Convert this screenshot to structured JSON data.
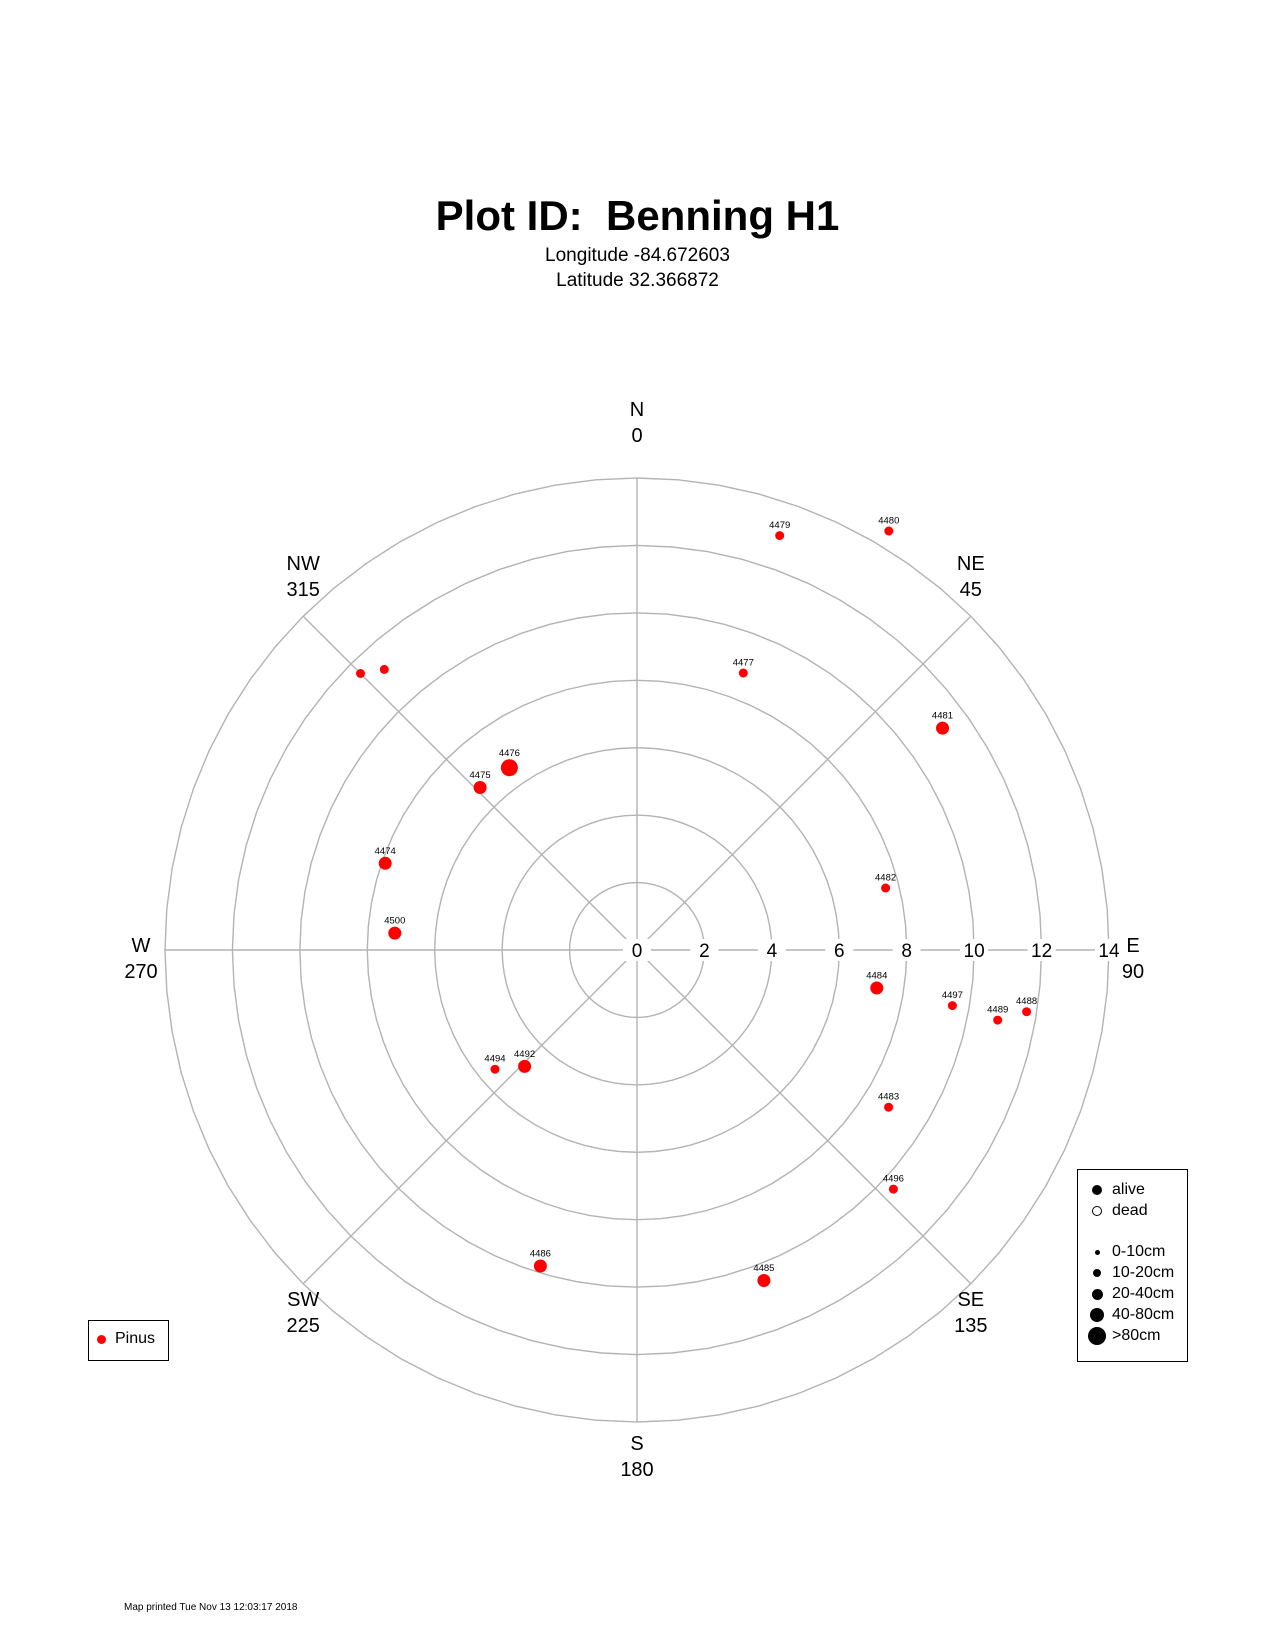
{
  "title": "Plot ID:  Benning H1",
  "subtitle": {
    "longitude": "Longitude -84.672603",
    "latitude": "Latitude 32.366872"
  },
  "footer": "Map printed Tue Nov 13 12:03:17 2018",
  "colors": {
    "grid": "#b3b3b3",
    "pinus": "#ff0000",
    "text": "#000000"
  },
  "chart_data": {
    "type": "scatter",
    "coordinate_system": "polar",
    "angle_units": "degrees clockwise from north",
    "radius_range": [
      0,
      14
    ],
    "radial_ticks": [
      "0",
      "2",
      "4",
      "6",
      "8",
      "10",
      "12",
      "14"
    ],
    "direction_labels": [
      {
        "dir": "N",
        "deg": "0"
      },
      {
        "dir": "NE",
        "deg": "45"
      },
      {
        "dir": "E",
        "deg": "90"
      },
      {
        "dir": "SE",
        "deg": "135"
      },
      {
        "dir": "S",
        "deg": "180"
      },
      {
        "dir": "SW",
        "deg": "225"
      },
      {
        "dir": "W",
        "deg": "270"
      },
      {
        "dir": "NW",
        "deg": "315"
      }
    ],
    "series": [
      {
        "name": "Pinus",
        "color": "#ff0000",
        "points": [
          {
            "label": "4479",
            "azimuth": 19,
            "distance": 13.0,
            "size_class": "10-20cm",
            "status": "alive"
          },
          {
            "label": "4480",
            "azimuth": 31,
            "distance": 14.5,
            "size_class": "10-20cm",
            "status": "alive"
          },
          {
            "label": "4477",
            "azimuth": 21,
            "distance": 8.8,
            "size_class": "10-20cm",
            "status": "alive"
          },
          {
            "label": "4481",
            "azimuth": 54,
            "distance": 11.2,
            "size_class": "20-40cm",
            "status": "alive"
          },
          {
            "label": "4482",
            "azimuth": 76,
            "distance": 7.6,
            "size_class": "10-20cm",
            "status": "alive"
          },
          {
            "label": "4484",
            "azimuth": 99,
            "distance": 7.2,
            "size_class": "20-40cm",
            "status": "alive"
          },
          {
            "label": "4497",
            "azimuth": 100,
            "distance": 9.5,
            "size_class": "10-20cm",
            "status": "alive"
          },
          {
            "label": "4489",
            "azimuth": 101,
            "distance": 10.9,
            "size_class": "10-20cm",
            "status": "alive"
          },
          {
            "label": "4488",
            "azimuth": 99,
            "distance": 11.7,
            "size_class": "10-20cm",
            "status": "alive"
          },
          {
            "label": "4483",
            "azimuth": 122,
            "distance": 8.8,
            "size_class": "10-20cm",
            "status": "alive"
          },
          {
            "label": "4496",
            "azimuth": 133,
            "distance": 10.4,
            "size_class": "10-20cm",
            "status": "alive"
          },
          {
            "label": "4485",
            "azimuth": 159,
            "distance": 10.5,
            "size_class": "20-40cm",
            "status": "alive"
          },
          {
            "label": "4486",
            "azimuth": 197,
            "distance": 9.8,
            "size_class": "20-40cm",
            "status": "alive"
          },
          {
            "label": "4492",
            "azimuth": 224,
            "distance": 4.8,
            "size_class": "20-40cm",
            "status": "alive"
          },
          {
            "label": "4494",
            "azimuth": 230,
            "distance": 5.5,
            "size_class": "10-20cm",
            "status": "alive"
          },
          {
            "label": "4500",
            "azimuth": 274,
            "distance": 7.2,
            "size_class": "20-40cm",
            "status": "alive"
          },
          {
            "label": "4474",
            "azimuth": 289,
            "distance": 7.9,
            "size_class": "20-40cm",
            "status": "alive"
          },
          {
            "label": "4475",
            "azimuth": 316,
            "distance": 6.7,
            "size_class": "20-40cm",
            "status": "alive"
          },
          {
            "label": "4476",
            "azimuth": 325,
            "distance": 6.6,
            "size_class": "40-80cm",
            "status": "alive"
          },
          {
            "label": "",
            "azimuth": 315,
            "distance": 11.6,
            "size_class": "10-20cm",
            "status": "alive"
          },
          {
            "label": "",
            "azimuth": 318,
            "distance": 11.2,
            "size_class": "10-20cm",
            "status": "alive"
          }
        ]
      }
    ],
    "legend": {
      "species": [
        {
          "label": "Pinus",
          "color": "#ff0000"
        }
      ],
      "species_position": "bottom-left",
      "status": [
        {
          "label": "alive",
          "filled": true
        },
        {
          "label": "dead",
          "filled": false
        }
      ],
      "size_classes": [
        "0-10cm",
        "10-20cm",
        "20-40cm",
        "40-80cm",
        ">80cm"
      ],
      "status_position": "bottom-right"
    }
  }
}
